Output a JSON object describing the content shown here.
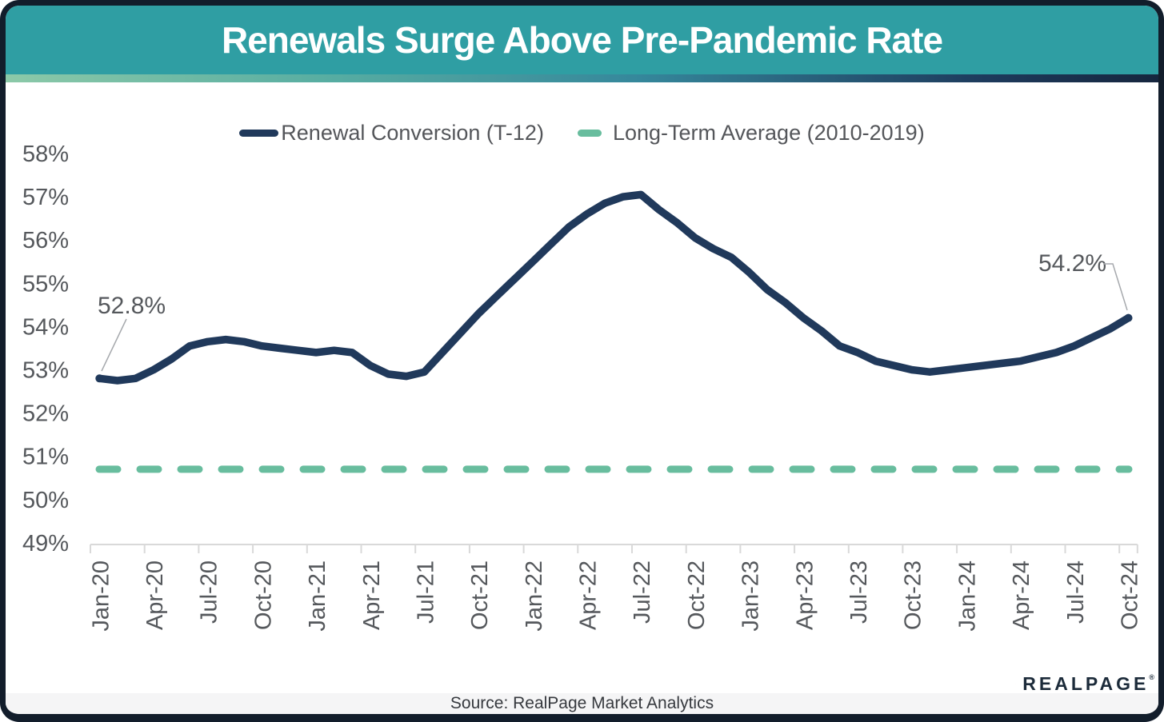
{
  "header": {
    "title": "Renewals Surge Above Pre-Pandemic Rate"
  },
  "footer": {
    "source": "Source: RealPage Market Analytics"
  },
  "logo": {
    "text": "REALPAGE",
    "mark": "®",
    "dots_icon": "three-orange-dots"
  },
  "colors": {
    "header_teal": "#2F9EA3",
    "series_navy": "#20395B",
    "average_green": "#68BD9E",
    "accent_orange": "#F0654D",
    "border_navy": "#121D2B",
    "axis_gray": "#D9D9D9",
    "label_gray": "#55585C"
  },
  "chart_data": {
    "type": "line",
    "title": "Renewals Surge Above Pre-Pandemic Rate",
    "xlabel": "",
    "ylabel": "",
    "ylim": [
      49,
      58
    ],
    "grid": "off",
    "legend_position": "top",
    "x_label_interval": 3,
    "y_tick_labels": [
      "58%",
      "57%",
      "56%",
      "55%",
      "54%",
      "53%",
      "52%",
      "51%",
      "50%",
      "49%"
    ],
    "months": [
      "Jan-20",
      "Feb-20",
      "Mar-20",
      "Apr-20",
      "May-20",
      "Jun-20",
      "Jul-20",
      "Aug-20",
      "Sep-20",
      "Oct-20",
      "Nov-20",
      "Dec-20",
      "Jan-21",
      "Feb-21",
      "Mar-21",
      "Apr-21",
      "May-21",
      "Jun-21",
      "Jul-21",
      "Aug-21",
      "Sep-21",
      "Oct-21",
      "Nov-21",
      "Dec-21",
      "Jan-22",
      "Feb-22",
      "Mar-22",
      "Apr-22",
      "May-22",
      "Jun-22",
      "Jul-22",
      "Aug-22",
      "Sep-22",
      "Oct-22",
      "Nov-22",
      "Dec-22",
      "Jan-23",
      "Feb-23",
      "Mar-23",
      "Apr-23",
      "May-23",
      "Jun-23",
      "Jul-23",
      "Aug-23",
      "Sep-23",
      "Oct-23",
      "Nov-23",
      "Dec-23",
      "Jan-24",
      "Feb-24",
      "Mar-24",
      "Apr-24",
      "May-24",
      "Jun-24",
      "Jul-24",
      "Aug-24",
      "Sep-24",
      "Oct-24"
    ],
    "series": [
      {
        "name": "Renewal Conversion (T-12)",
        "color": "#20395B",
        "style": "solid",
        "values": [
          52.8,
          52.75,
          52.8,
          53.0,
          53.25,
          53.55,
          53.65,
          53.7,
          53.65,
          53.55,
          53.5,
          53.45,
          53.4,
          53.45,
          53.4,
          53.1,
          52.9,
          52.85,
          52.95,
          53.4,
          53.85,
          54.3,
          54.7,
          55.1,
          55.5,
          55.9,
          56.3,
          56.6,
          56.85,
          57.0,
          57.05,
          56.7,
          56.4,
          56.05,
          55.8,
          55.6,
          55.25,
          54.85,
          54.55,
          54.2,
          53.9,
          53.55,
          53.4,
          53.2,
          53.1,
          53.0,
          52.95,
          53.0,
          53.05,
          53.1,
          53.15,
          53.2,
          53.3,
          53.4,
          53.55,
          53.75,
          53.95,
          54.2
        ]
      },
      {
        "name": "Long-Term Average (2010-2019)",
        "color": "#68BD9E",
        "style": "dashed",
        "value": 50.7
      }
    ],
    "annotations": [
      {
        "label": "52.8%",
        "point": "Jan-20"
      },
      {
        "label": "54.2%",
        "point": "Oct-24"
      }
    ]
  }
}
